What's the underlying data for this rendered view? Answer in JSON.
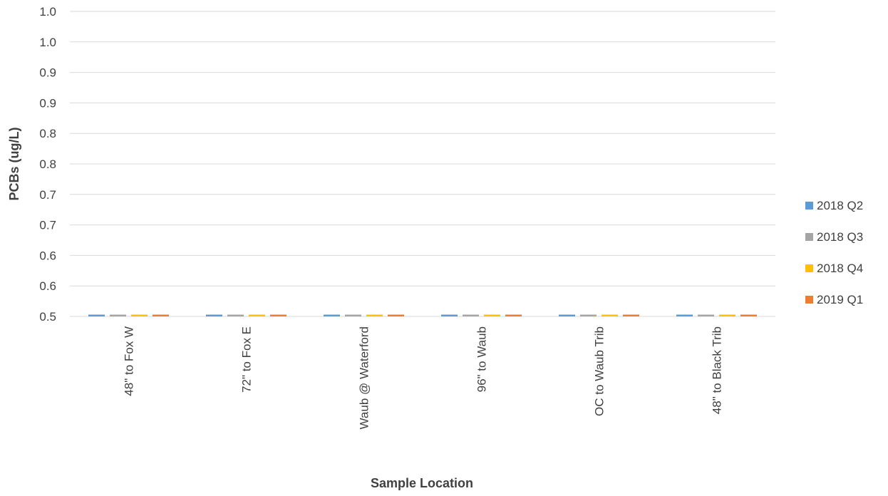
{
  "chart_data": {
    "type": "bar",
    "title": "",
    "xlabel": "Sample Location",
    "ylabel": "PCBs (ug/L)",
    "categories": [
      "48\" to Fox W",
      "72\" to Fox E",
      "Waub @ Waterford",
      "96\" to Waub",
      "OC to Waub Trib",
      "48\" to Black Trib"
    ],
    "series": [
      {
        "name": "2018 Q2",
        "color": "#5b9bd5",
        "values": [
          0.5,
          0.5,
          0.5,
          0.5,
          0.5,
          0.5
        ]
      },
      {
        "name": "2018 Q3",
        "color": "#a5a5a5",
        "values": [
          0.5,
          0.5,
          0.5,
          0.5,
          0.5,
          0.5
        ]
      },
      {
        "name": "2018 Q4",
        "color": "#ffc000",
        "values": [
          0.5,
          0.5,
          0.5,
          0.5,
          0.5,
          0.5
        ]
      },
      {
        "name": "2019 Q1",
        "color": "#ed7d31",
        "values": [
          0.5,
          0.5,
          0.5,
          0.5,
          0.5,
          0.5
        ]
      }
    ],
    "ylim": [
      0.5,
      1.0
    ],
    "y_ticks": [
      0.5,
      0.55,
      0.6,
      0.65,
      0.7,
      0.75,
      0.8,
      0.85,
      0.9,
      0.95,
      1.0
    ],
    "y_tick_labels": [
      "0.5",
      "0.6",
      "0.6",
      "0.7",
      "0.7",
      "0.8",
      "0.8",
      "0.9",
      "0.9",
      "1.0",
      "1.0"
    ],
    "grid": true,
    "legend_position": "right"
  }
}
